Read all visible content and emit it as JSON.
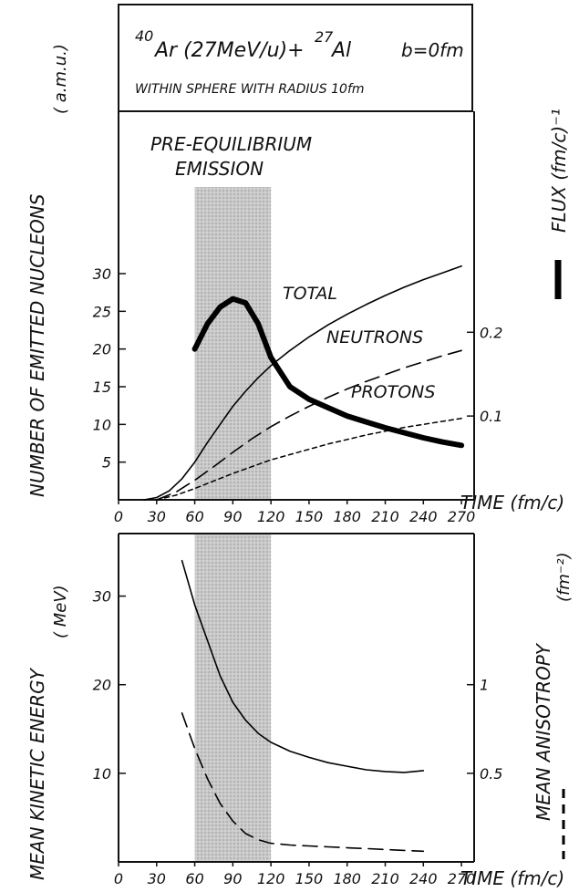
{
  "header": {
    "reaction_a": "Ar (27MeV/u)+",
    "mass_a": "40",
    "mass_b": "27",
    "target": "Al",
    "impact": "b=0fm",
    "sphere": "WITHIN   SPHERE WITH RADIUS 10fm"
  },
  "chart_data": [
    {
      "type": "line",
      "annotation": [
        "PRE-EQUILIBRIUM",
        "EMISSION"
      ],
      "ylabel_left": [
        "NUMBER  OF  EMITTED  NUCLEONS",
        "( a.m.u.)"
      ],
      "ylabel_right": "FLUX  (fm/c)⁻¹",
      "xlabel": "TIME (fm/c)",
      "x_ticks": [
        0,
        30,
        60,
        90,
        120,
        150,
        180,
        210,
        240,
        270
      ],
      "y_ticks": [
        5,
        10,
        15,
        20,
        25,
        30
      ],
      "y2_ticks": [
        0.1,
        0.2
      ],
      "xlim": [
        0,
        280
      ],
      "ylim": [
        0,
        30
      ],
      "y2lim": [
        0,
        0.27
      ],
      "shaded_band": [
        60,
        120
      ],
      "series": [
        {
          "name": "TOTAL",
          "axis": "left",
          "style": "solid",
          "x": [
            20,
            30,
            40,
            50,
            60,
            70,
            80,
            90,
            100,
            110,
            120,
            135,
            150,
            165,
            180,
            195,
            210,
            225,
            240,
            255,
            270
          ],
          "y": [
            0,
            0.3,
            1.2,
            2.8,
            5.0,
            7.6,
            10.0,
            12.4,
            14.4,
            16.2,
            17.8,
            19.8,
            21.6,
            23.2,
            24.6,
            25.9,
            27.1,
            28.2,
            29.2,
            30.1,
            31.0
          ]
        },
        {
          "name": "NEUTRONS",
          "axis": "left",
          "style": "dashed",
          "x": [
            30,
            45,
            60,
            75,
            90,
            105,
            120,
            135,
            150,
            165,
            180,
            195,
            210,
            225,
            240,
            255,
            270
          ],
          "y": [
            0,
            1.0,
            2.6,
            4.4,
            6.3,
            8.1,
            9.7,
            11.1,
            12.4,
            13.6,
            14.7,
            15.7,
            16.6,
            17.5,
            18.3,
            19.1,
            19.8
          ]
        },
        {
          "name": "PROTONS",
          "axis": "left",
          "style": "dotted",
          "x": [
            30,
            45,
            60,
            75,
            90,
            105,
            120,
            135,
            150,
            165,
            180,
            195,
            210,
            225,
            240,
            255,
            270
          ],
          "y": [
            0,
            0.6,
            1.5,
            2.5,
            3.5,
            4.4,
            5.3,
            6.0,
            6.7,
            7.4,
            8.0,
            8.6,
            9.1,
            9.6,
            10.0,
            10.4,
            10.8
          ]
        },
        {
          "name": "FLUX",
          "axis": "right",
          "style": "bold",
          "x": [
            60,
            70,
            80,
            90,
            100,
            110,
            120,
            135,
            150,
            165,
            180,
            195,
            210,
            225,
            240,
            255,
            270
          ],
          "y": [
            0.18,
            0.21,
            0.23,
            0.24,
            0.235,
            0.21,
            0.17,
            0.135,
            0.12,
            0.11,
            0.1,
            0.093,
            0.086,
            0.08,
            0.074,
            0.069,
            0.065
          ]
        }
      ]
    },
    {
      "type": "line",
      "ylabel_left": [
        "MEAN  KINETIC  ENERGY",
        "( MeV)"
      ],
      "ylabel_right": [
        "MEAN  ANISOTROPY",
        "(fm⁻²)"
      ],
      "xlabel": "TIME (fm/c)",
      "x_ticks": [
        0,
        30,
        60,
        90,
        120,
        150,
        180,
        210,
        240,
        270
      ],
      "y_ticks": [
        10,
        20,
        30
      ],
      "y2_ticks": [
        0.5,
        1
      ],
      "xlim": [
        0,
        280
      ],
      "ylim": [
        0,
        35
      ],
      "y2lim": [
        0,
        1.75
      ],
      "shaded_band": [
        60,
        120
      ],
      "series": [
        {
          "axis": "left",
          "style": "solid",
          "x": [
            50,
            60,
            70,
            80,
            90,
            100,
            110,
            120,
            135,
            150,
            165,
            180,
            195,
            210,
            225,
            240
          ],
          "y": [
            34,
            29,
            25,
            21,
            18,
            16,
            14.5,
            13.5,
            12.5,
            11.8,
            11.2,
            10.8,
            10.4,
            10.2,
            10.1,
            10.3
          ]
        },
        {
          "axis": "right",
          "style": "dashed",
          "x": [
            50,
            60,
            70,
            80,
            90,
            100,
            110,
            120,
            135,
            150,
            165,
            180,
            195,
            210,
            225,
            240
          ],
          "y": [
            0.84,
            0.64,
            0.47,
            0.33,
            0.23,
            0.16,
            0.125,
            0.105,
            0.095,
            0.09,
            0.085,
            0.08,
            0.075,
            0.07,
            0.065,
            0.06
          ]
        }
      ]
    }
  ]
}
